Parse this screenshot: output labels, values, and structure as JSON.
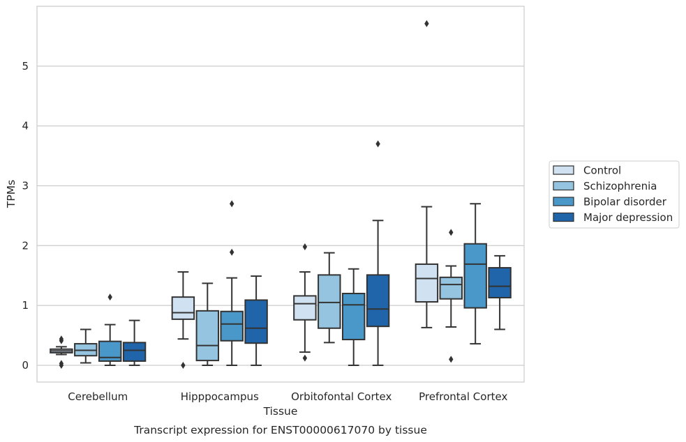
{
  "chart_data": {
    "type": "box",
    "caption": "Transcript expression for ENST00000617070 by tissue",
    "xlabel": "Tissue",
    "ylabel": "TPMs",
    "ylim": [
      -0.28,
      6.0
    ],
    "yticks": [
      0,
      1,
      2,
      3,
      4,
      5
    ],
    "grid": "horizontal",
    "legend_position": "right",
    "categories": [
      "Cerebellum",
      "Hipppocampus",
      "Orbitofontal Cortex",
      "Prefrontal Cortex"
    ],
    "series": [
      {
        "name": "Control",
        "color": "#d0e1f2",
        "boxes": [
          {
            "whislo": 0.18,
            "q1": 0.21,
            "med": 0.24,
            "q3": 0.27,
            "whishi": 0.31,
            "fliers": [
              0.0,
              0.03,
              0.41,
              0.44
            ]
          },
          {
            "whislo": 0.44,
            "q1": 0.77,
            "med": 0.88,
            "q3": 1.14,
            "whishi": 1.56,
            "fliers": [
              0.0
            ]
          },
          {
            "whislo": 0.22,
            "q1": 0.76,
            "med": 1.03,
            "q3": 1.16,
            "whishi": 1.56,
            "fliers": [
              0.12,
              1.98
            ]
          },
          {
            "whislo": 0.63,
            "q1": 1.06,
            "med": 1.45,
            "q3": 1.69,
            "whishi": 2.65,
            "fliers": [
              5.71
            ]
          }
        ]
      },
      {
        "name": "Schizophrenia",
        "color": "#94c4df",
        "boxes": [
          {
            "whislo": 0.04,
            "q1": 0.16,
            "med": 0.25,
            "q3": 0.36,
            "whishi": 0.6,
            "fliers": []
          },
          {
            "whislo": 0.0,
            "q1": 0.08,
            "med": 0.33,
            "q3": 0.91,
            "whishi": 1.37,
            "fliers": []
          },
          {
            "whislo": 0.38,
            "q1": 0.62,
            "med": 1.05,
            "q3": 1.51,
            "whishi": 1.88,
            "fliers": []
          },
          {
            "whislo": 0.64,
            "q1": 1.11,
            "med": 1.35,
            "q3": 1.47,
            "whishi": 1.66,
            "fliers": [
              0.1,
              2.22
            ]
          }
        ]
      },
      {
        "name": "Bipolar disorder",
        "color": "#4a98c9",
        "boxes": [
          {
            "whislo": 0.0,
            "q1": 0.07,
            "med": 0.13,
            "q3": 0.4,
            "whishi": 0.68,
            "fliers": [
              1.14
            ]
          },
          {
            "whislo": 0.0,
            "q1": 0.41,
            "med": 0.69,
            "q3": 0.9,
            "whishi": 1.46,
            "fliers": [
              1.89,
              2.7
            ]
          },
          {
            "whislo": 0.0,
            "q1": 0.43,
            "med": 1.01,
            "q3": 1.2,
            "whishi": 1.61,
            "fliers": []
          },
          {
            "whislo": 0.36,
            "q1": 0.96,
            "med": 1.69,
            "q3": 2.03,
            "whishi": 2.7,
            "fliers": []
          }
        ]
      },
      {
        "name": "Major depression",
        "color": "#2064aa",
        "boxes": [
          {
            "whislo": 0.0,
            "q1": 0.07,
            "med": 0.25,
            "q3": 0.38,
            "whishi": 0.75,
            "fliers": []
          },
          {
            "whislo": 0.0,
            "q1": 0.37,
            "med": 0.62,
            "q3": 1.09,
            "whishi": 1.49,
            "fliers": []
          },
          {
            "whislo": 0.0,
            "q1": 0.65,
            "med": 0.94,
            "q3": 1.51,
            "whishi": 2.42,
            "fliers": [
              3.7
            ]
          },
          {
            "whislo": 0.6,
            "q1": 1.13,
            "med": 1.32,
            "q3": 1.63,
            "whishi": 1.83,
            "fliers": []
          }
        ]
      }
    ]
  }
}
